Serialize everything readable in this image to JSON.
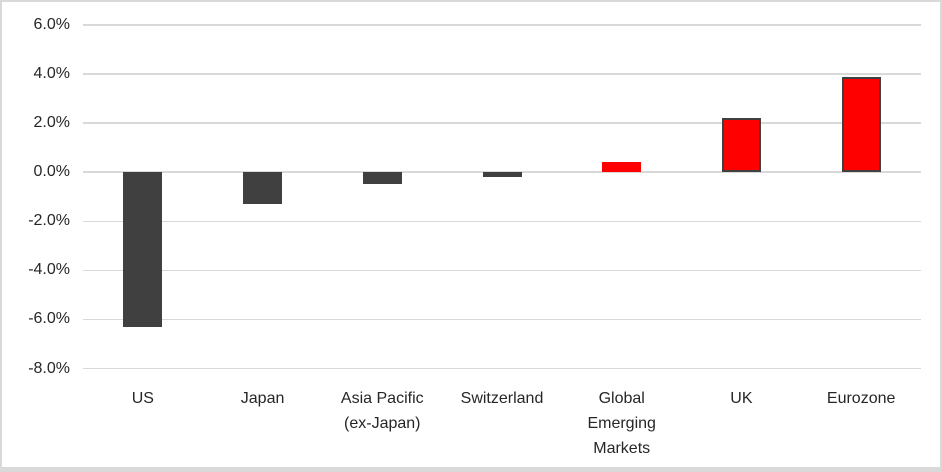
{
  "chart_data": {
    "type": "bar",
    "title": "",
    "xlabel": "",
    "ylabel": "",
    "unit": "%",
    "categories": [
      "US",
      "Japan",
      "Asia Pacific (ex-Japan)",
      "Switzerland",
      "Global Emerging Markets",
      "UK",
      "Eurozone"
    ],
    "category_label_lines": [
      [
        "US"
      ],
      [
        "Japan"
      ],
      [
        "Asia Pacific",
        "(ex-Japan)"
      ],
      [
        "Switzerland"
      ],
      [
        "Global",
        "Emerging",
        "Markets"
      ],
      [
        "UK"
      ],
      [
        "Eurozone"
      ]
    ],
    "values": [
      -6.3,
      -1.3,
      -0.5,
      -0.2,
      0.4,
      2.2,
      3.9
    ],
    "ylim": [
      -8,
      6
    ],
    "ytick_step": 2,
    "ytick_labels": [
      "6.0%",
      "4.0%",
      "2.0%",
      "0.0%",
      "-2.0%",
      "-4.0%",
      "-6.0%",
      "-8.0%"
    ],
    "grid": true,
    "legend": false,
    "bar_styles": [
      {
        "fill": "#404040",
        "border": null
      },
      {
        "fill": "#404040",
        "border": null
      },
      {
        "fill": "#404040",
        "border": null
      },
      {
        "fill": "#404040",
        "border": null
      },
      {
        "fill": "#ff0000",
        "border": null
      },
      {
        "fill": "#ff0000",
        "border": "#404040"
      },
      {
        "fill": "#ff0000",
        "border": "#404040"
      }
    ],
    "colors": {
      "negative_fill": "#404040",
      "positive_fill": "#ff0000",
      "bar_outline": "#404040",
      "gridline": "#d9d9d9",
      "frame_border": "#d9d9d9",
      "text": "#262626",
      "background": "#ffffff"
    }
  }
}
